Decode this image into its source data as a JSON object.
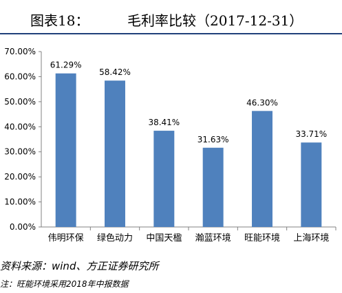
{
  "header": {
    "label": "图表18：",
    "title": "毛利率比较（2017-12-31）"
  },
  "chart_data": {
    "type": "bar",
    "title": "毛利率比较（2017-12-31）",
    "categories": [
      "伟明环保",
      "绿色动力",
      "中国天楹",
      "瀚蓝环境",
      "旺能环境",
      "上海环境"
    ],
    "values": [
      61.29,
      58.42,
      38.41,
      31.63,
      46.3,
      33.71
    ],
    "data_labels": [
      "61.29%",
      "58.42%",
      "38.41%",
      "31.63%",
      "46.30%",
      "33.71%"
    ],
    "y_ticks": [
      "0.00%",
      "10.00%",
      "20.00%",
      "30.00%",
      "40.00%",
      "50.00%",
      "60.00%",
      "70.00%"
    ],
    "ylim": [
      0,
      70
    ],
    "grid": false,
    "bar_color": "#4f81bd",
    "xlabel": "",
    "ylabel": ""
  },
  "footer": {
    "source": "资料来源：wind、方正证券研究所",
    "note": "注：旺能环境采用2018年中报数据"
  }
}
